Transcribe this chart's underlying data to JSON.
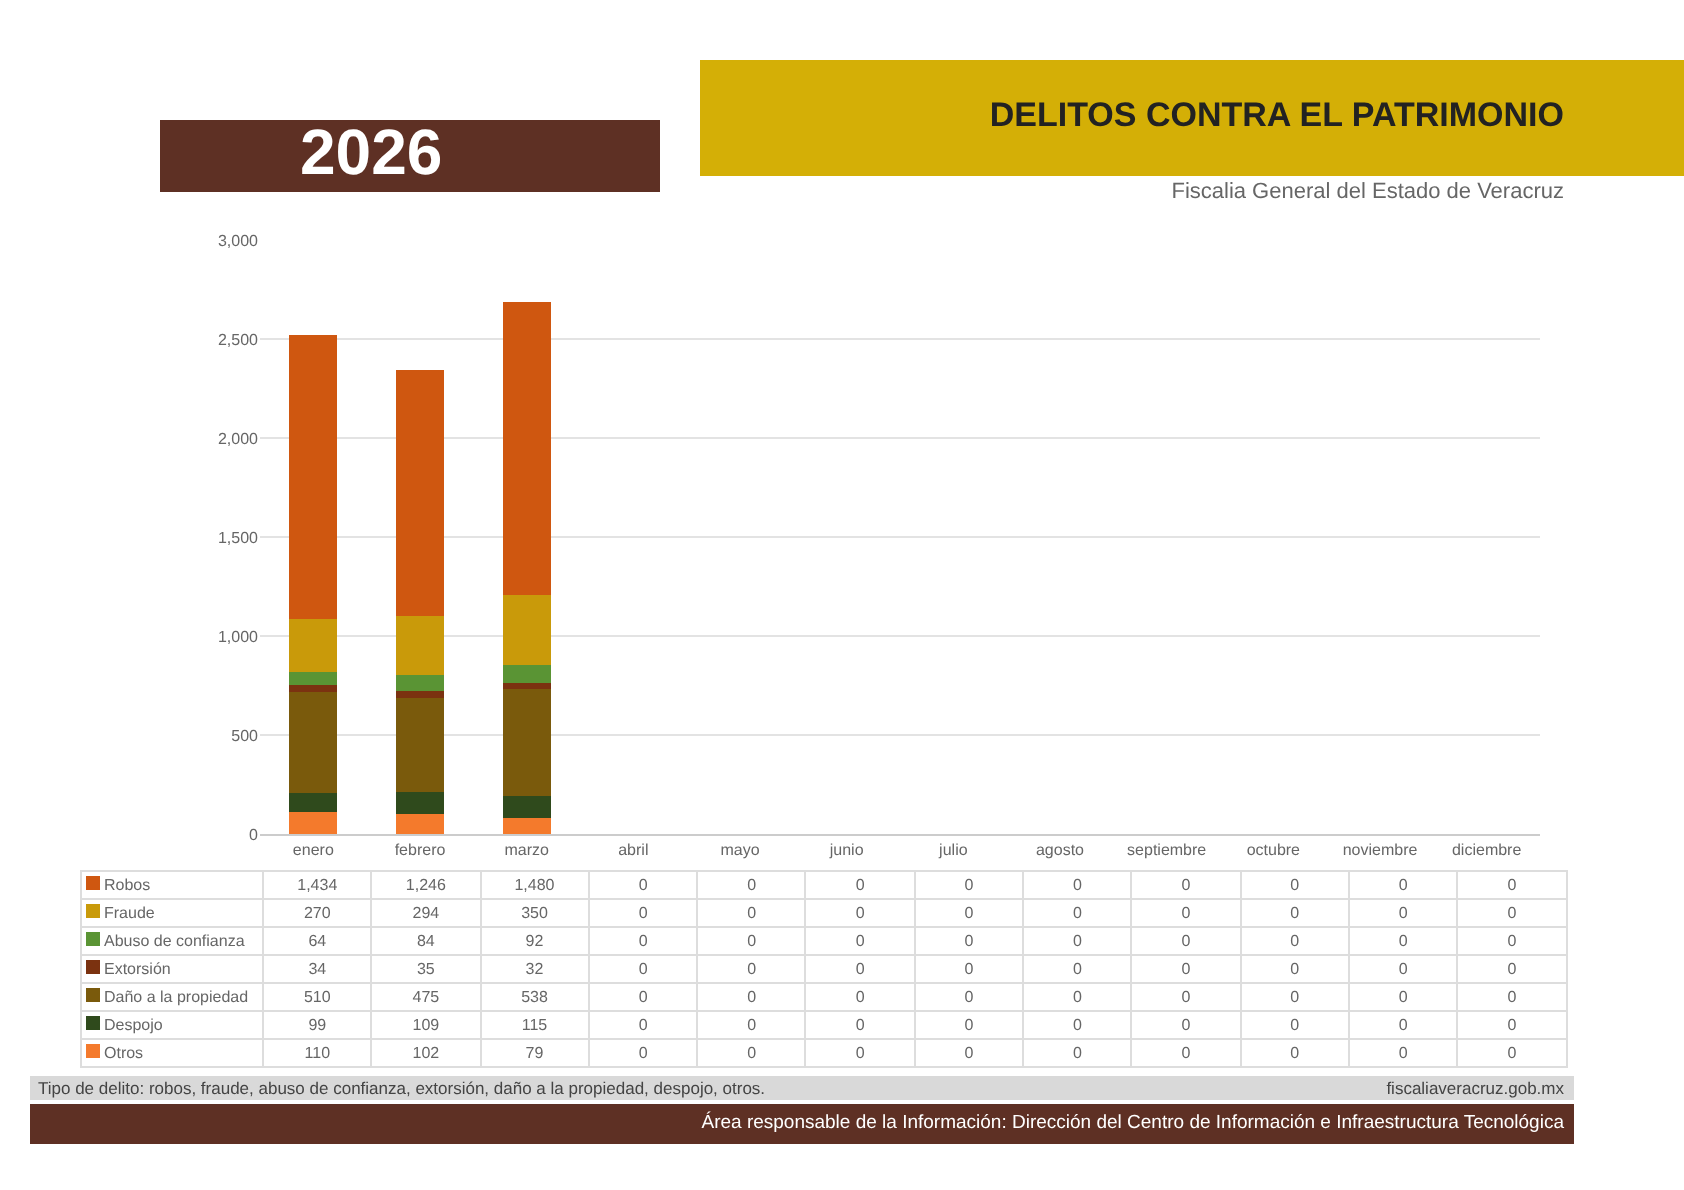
{
  "chart_data": {
    "type": "bar",
    "title": "DELITOS CONTRA EL PATRIMONIO",
    "subtitle": "Fiscalia General del Estado de Veracruz",
    "annotations": [
      "2026",
      "Tipo de delito: robos, fraude, abuso de confianza, extorsión, daño a la propiedad, despojo,  otros.",
      "fiscaliaveracruz.gob.mx",
      "Área responsable de la Información: Dirección del Centro de Información e Infraestructura Tecnológica"
    ],
    "categories": [
      "enero",
      "febrero",
      "marzo",
      "abril",
      "mayo",
      "junio",
      "julio",
      "agosto",
      "septiembre",
      "octubre",
      "noviembre",
      "diciembre"
    ],
    "stacked": true,
    "series": [
      {
        "name": "Otros",
        "color": "#f47a2c",
        "values": [
          110,
          102,
          79,
          0,
          0,
          0,
          0,
          0,
          0,
          0,
          0,
          0
        ],
        "value_labels": [
          "110",
          "102",
          "79",
          "0",
          "0",
          "0",
          "0",
          "0",
          "0",
          "0",
          "0",
          "0"
        ]
      },
      {
        "name": "Despojo",
        "color": "#2f4a1c",
        "values": [
          99,
          109,
          115,
          0,
          0,
          0,
          0,
          0,
          0,
          0,
          0,
          0
        ],
        "value_labels": [
          "99",
          "109",
          "115",
          "0",
          "0",
          "0",
          "0",
          "0",
          "0",
          "0",
          "0",
          "0"
        ]
      },
      {
        "name": "Daño a la propiedad",
        "color": "#7a5a0c",
        "values": [
          510,
          475,
          538,
          0,
          0,
          0,
          0,
          0,
          0,
          0,
          0,
          0
        ],
        "value_labels": [
          "510",
          "475",
          "538",
          "0",
          "0",
          "0",
          "0",
          "0",
          "0",
          "0",
          "0",
          "0"
        ]
      },
      {
        "name": "Extorsión",
        "color": "#7b3210",
        "values": [
          34,
          35,
          32,
          0,
          0,
          0,
          0,
          0,
          0,
          0,
          0,
          0
        ],
        "value_labels": [
          "34",
          "35",
          "32",
          "0",
          "0",
          "0",
          "0",
          "0",
          "0",
          "0",
          "0",
          "0"
        ]
      },
      {
        "name": "Abuso de confianza",
        "color": "#5a9434",
        "values": [
          64,
          84,
          92,
          0,
          0,
          0,
          0,
          0,
          0,
          0,
          0,
          0
        ],
        "value_labels": [
          "64",
          "84",
          "92",
          "0",
          "0",
          "0",
          "0",
          "0",
          "0",
          "0",
          "0",
          "0"
        ]
      },
      {
        "name": "Fraude",
        "color": "#c99a0a",
        "values": [
          270,
          294,
          350,
          0,
          0,
          0,
          0,
          0,
          0,
          0,
          0,
          0
        ],
        "value_labels": [
          "270",
          "294",
          "350",
          "0",
          "0",
          "0",
          "0",
          "0",
          "0",
          "0",
          "0",
          "0"
        ]
      },
      {
        "name": "Robos",
        "color": "#cf5710",
        "values": [
          1434,
          1246,
          1480,
          0,
          0,
          0,
          0,
          0,
          0,
          0,
          0,
          0
        ],
        "value_labels": [
          "1,434",
          "1,246",
          "1,480",
          "0",
          "0",
          "0",
          "0",
          "0",
          "0",
          "0",
          "0",
          "0"
        ]
      }
    ],
    "ylim": [
      0,
      3000
    ],
    "yticks": [
      {
        "value": 0,
        "label": "0"
      },
      {
        "value": 500,
        "label": "500"
      },
      {
        "value": 1000,
        "label": "1,000"
      },
      {
        "value": 1500,
        "label": "1,500"
      },
      {
        "value": 2000,
        "label": "2,000"
      },
      {
        "value": 2500,
        "label": "2,500"
      },
      {
        "value": 3000,
        "label": "3,000"
      }
    ],
    "grid": "y",
    "legend": "bottom"
  }
}
